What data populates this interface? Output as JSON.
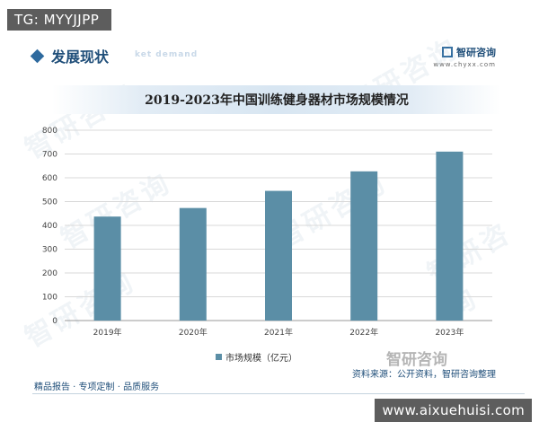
{
  "overlay": {
    "tg_tag": "TG: MYYJJPP",
    "site_url": "www.aixuehuisi.com"
  },
  "header": {
    "section_title": "发展现状",
    "section_subtitle": "ket demand",
    "brand_name": "智研咨询",
    "brand_url": "www.chyxx.com"
  },
  "watermark_text": "智研咨询",
  "chart_data": {
    "type": "bar",
    "title": "2019-2023年中国训练健身器材市场规模情况",
    "categories": [
      "2019年",
      "2020年",
      "2021年",
      "2022年",
      "2023年"
    ],
    "series": [
      {
        "name": "市场规模（亿元）",
        "values": [
          437,
          473,
          545,
          627,
          710
        ]
      }
    ],
    "ylim": [
      0,
      800
    ],
    "yticks": [
      0,
      100,
      200,
      300,
      400,
      500,
      600,
      700,
      800
    ],
    "grid": true,
    "legend": "bottom-center",
    "bar_color": "#5b8ea6"
  },
  "footer": {
    "left_text": "精品报告 · 专项定制 · 品质服务",
    "right_text": "资料来源：公开资料，智研咨询整理",
    "brand_text": "智研咨询",
    "watermark_caption": "@智研产业研究院"
  }
}
